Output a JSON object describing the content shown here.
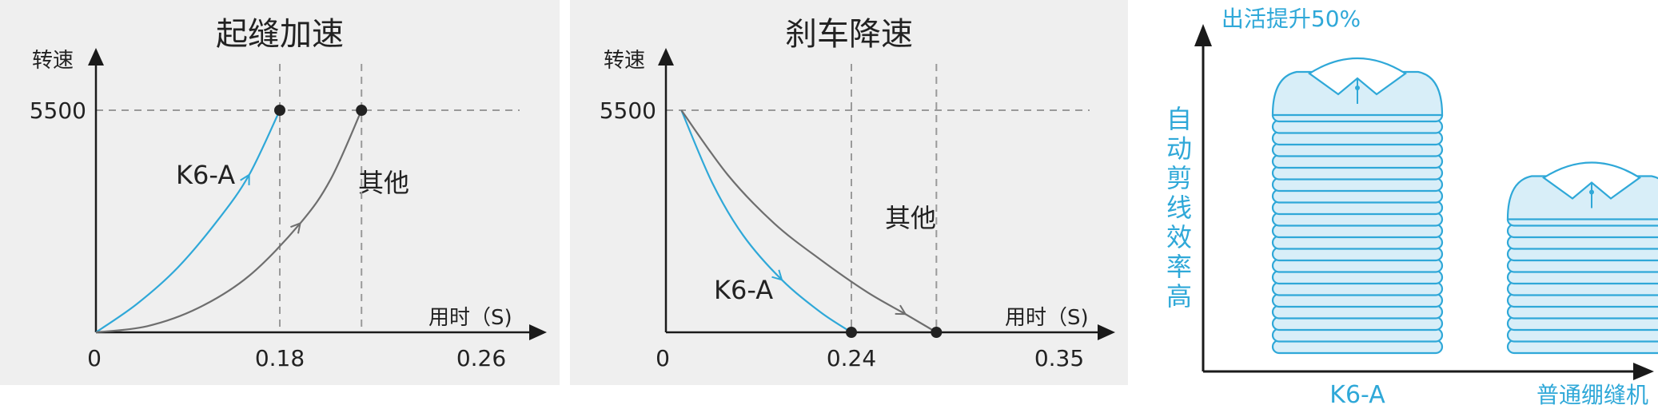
{
  "colors": {
    "k6a": "#2fa8d8",
    "other": "#6e6e6e",
    "axis": "#1a1a1a",
    "grid": "#9a9a9a",
    "point": "#222222",
    "shirt": "#2fa8d8",
    "shirt_fill": "#d8eef8"
  },
  "chart_data": [
    {
      "type": "line",
      "title": "起缝加速",
      "ylabel": "转速",
      "xlabel": "用时（S)",
      "x_ticks": [
        "0",
        "0.18",
        "0.26"
      ],
      "y_ticks": [
        "5500"
      ],
      "xlim": [
        0,
        0.3
      ],
      "ylim": [
        0,
        7000
      ],
      "grid": "dashed guides at x=0.18, x=0.26, y=5500",
      "series": [
        {
          "name": "K6-A",
          "x": [
            0,
            0.04,
            0.08,
            0.12,
            0.15,
            0.18
          ],
          "y": [
            0,
            700,
            1600,
            2800,
            3900,
            5500
          ]
        },
        {
          "name": "其他",
          "x": [
            0,
            0.05,
            0.1,
            0.15,
            0.2,
            0.23,
            0.26
          ],
          "y": [
            0,
            150,
            600,
            1400,
            2700,
            3800,
            5500
          ]
        }
      ]
    },
    {
      "type": "line",
      "title": "刹车降速",
      "ylabel": "转速",
      "xlabel": "用时（S)",
      "x_ticks": [
        "0",
        "0.24",
        "0.35"
      ],
      "y_ticks": [
        "5500"
      ],
      "xlim": [
        0,
        0.4
      ],
      "ylim": [
        0,
        7000
      ],
      "grid": "dashed guides at x=0.24, x=0.35, y=5500",
      "series": [
        {
          "name": "K6-A",
          "x": [
            0.02,
            0.06,
            0.1,
            0.15,
            0.2,
            0.24
          ],
          "y": [
            5500,
            3700,
            2400,
            1300,
            500,
            0
          ]
        },
        {
          "name": "其他",
          "x": [
            0.02,
            0.08,
            0.14,
            0.2,
            0.26,
            0.31,
            0.35
          ],
          "y": [
            5500,
            3900,
            2700,
            1800,
            1000,
            450,
            0
          ]
        }
      ]
    }
  ],
  "comparison": {
    "ylabel_chars": [
      "自",
      "动",
      "剪",
      "线",
      "效",
      "率",
      "高"
    ],
    "callout": "出活提升50%",
    "categories": [
      "K6-A",
      "普通绷缝机"
    ],
    "stack_layers": [
      21,
      12
    ]
  }
}
